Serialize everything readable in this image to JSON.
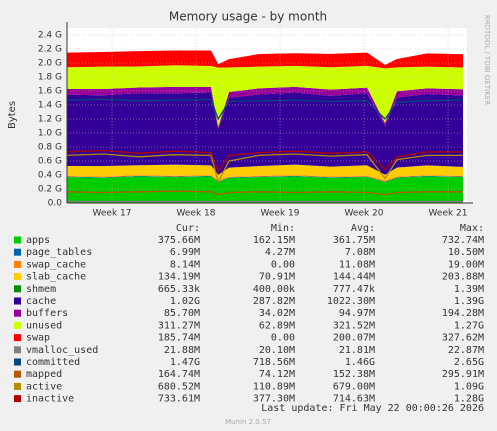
{
  "chart_data": {
    "type": "stacked-area",
    "title": "Memory usage - by month",
    "ylabel": "Bytes",
    "side_text": "RRDTOOL / TOBI OETIKER",
    "footer": "Last update: Fri May 22 00:00:26 2026",
    "version": "Munin 2.0.57",
    "columns": [
      "Cur:",
      "Min:",
      "Avg:",
      "Max:"
    ],
    "x": [
      0,
      3,
      6,
      9,
      12,
      12.6,
      13.5,
      16,
      19,
      22,
      25,
      26.5,
      27.5,
      30,
      33
    ],
    "xlim": [
      0,
      33.33
    ],
    "xticks": [
      {
        "value": 3.75,
        "label": "Week 17"
      },
      {
        "value": 10.75,
        "label": "Week 18"
      },
      {
        "value": 17.75,
        "label": "Week 19"
      },
      {
        "value": 24.75,
        "label": "Week 20"
      },
      {
        "value": 31.75,
        "label": "Week 21"
      }
    ],
    "ylim": [
      0,
      2.5
    ],
    "yticks": [
      {
        "value": 0,
        "label": "0.0"
      },
      {
        "value": 0.2,
        "label": "0.2 G"
      },
      {
        "value": 0.4,
        "label": "0.4 G"
      },
      {
        "value": 0.6,
        "label": "0.6 G"
      },
      {
        "value": 0.8,
        "label": "0.8 G"
      },
      {
        "value": 1.0,
        "label": "1.0 G"
      },
      {
        "value": 1.2,
        "label": "1.2 G"
      },
      {
        "value": 1.4,
        "label": "1.4 G"
      },
      {
        "value": 1.6,
        "label": "1.6 G"
      },
      {
        "value": 1.8,
        "label": "1.8 G"
      },
      {
        "value": 2.0,
        "label": "2.0 G"
      },
      {
        "value": 2.2,
        "label": "2.2 G"
      },
      {
        "value": 2.4,
        "label": "2.4 G"
      }
    ],
    "grid": true,
    "series": [
      {
        "name": "apps",
        "color": "#00cc00",
        "kind": "area",
        "stats": [
          "375.66M",
          "162.15M",
          "361.75M",
          "732.74M"
        ],
        "values": [
          0.37,
          0.36,
          0.38,
          0.37,
          0.38,
          0.3,
          0.36,
          0.37,
          0.38,
          0.36,
          0.37,
          0.3,
          0.36,
          0.38,
          0.37
        ]
      },
      {
        "name": "page_tables",
        "color": "#0066b3",
        "kind": "area",
        "stats": [
          "6.99M",
          "4.27M",
          "7.08M",
          "10.50M"
        ],
        "values": [
          0.007,
          0.007,
          0.007,
          0.007,
          0.007,
          0.005,
          0.007,
          0.007,
          0.007,
          0.007,
          0.007,
          0.005,
          0.007,
          0.007,
          0.007
        ]
      },
      {
        "name": "swap_cache",
        "color": "#ff8000",
        "kind": "area",
        "stats": [
          "8.14M",
          "0.00",
          "11.08M",
          "19.00M"
        ],
        "values": [
          0.011,
          0.01,
          0.012,
          0.011,
          0.01,
          0.019,
          0.008,
          0.01,
          0.011,
          0.012,
          0.011,
          0.018,
          0.009,
          0.01,
          0.008
        ]
      },
      {
        "name": "slab_cache",
        "color": "#ffcc00",
        "kind": "area",
        "stats": [
          "134.19M",
          "70.91M",
          "144.44M",
          "203.88M"
        ],
        "values": [
          0.14,
          0.15,
          0.14,
          0.16,
          0.14,
          0.08,
          0.13,
          0.14,
          0.15,
          0.14,
          0.15,
          0.08,
          0.13,
          0.14,
          0.13
        ]
      },
      {
        "name": "shmem",
        "color": "#008f00",
        "kind": "area",
        "stats": [
          "665.33k",
          "400.00k",
          "777.47k",
          "1.39M"
        ],
        "values": [
          0.0007,
          0.0007,
          0.0008,
          0.0007,
          0.0008,
          0.0004,
          0.0007,
          0.0007,
          0.0008,
          0.0007,
          0.0008,
          0.0004,
          0.0007,
          0.0007,
          0.0007
        ]
      },
      {
        "name": "cache",
        "color": "#330099",
        "kind": "area",
        "stats": [
          "1.02G",
          "287.82M",
          "1022.30M",
          "1.39G"
        ],
        "values": [
          1.02,
          1.01,
          1.03,
          1.02,
          1.04,
          0.65,
          1.0,
          1.02,
          1.03,
          1.01,
          1.03,
          0.7,
          1.0,
          1.02,
          1.02
        ]
      },
      {
        "name": "buffers",
        "color": "#990099",
        "kind": "area",
        "stats": [
          "85.70M",
          "34.02M",
          "94.97M",
          "194.28M"
        ],
        "values": [
          0.08,
          0.09,
          0.08,
          0.09,
          0.08,
          0.03,
          0.08,
          0.09,
          0.08,
          0.09,
          0.08,
          0.04,
          0.09,
          0.08,
          0.09
        ]
      },
      {
        "name": "unused",
        "color": "#ccff00",
        "kind": "area",
        "stats": [
          "311.27M",
          "62.89M",
          "321.52M",
          "1.27G"
        ],
        "values": [
          0.31,
          0.32,
          0.3,
          0.31,
          0.3,
          0.85,
          0.35,
          0.31,
          0.3,
          0.32,
          0.31,
          0.78,
          0.34,
          0.31,
          0.31
        ]
      },
      {
        "name": "swap",
        "color": "#ff0000",
        "kind": "area",
        "stats": [
          "185.74M",
          "0.00",
          "200.07M",
          "327.62M"
        ],
        "values": [
          0.21,
          0.21,
          0.22,
          0.21,
          0.22,
          0.05,
          0.12,
          0.18,
          0.18,
          0.19,
          0.19,
          0.05,
          0.12,
          0.19,
          0.19
        ]
      },
      {
        "name": "vmalloc_used",
        "color": "#808080",
        "kind": "line",
        "stats": [
          "21.88M",
          "20.10M",
          "21.81M",
          "22.87M"
        ],
        "values": [
          0.022,
          0.022,
          0.022,
          0.022,
          0.022,
          0.021,
          0.022,
          0.022,
          0.022,
          0.022,
          0.022,
          0.021,
          0.022,
          0.022,
          0.022
        ]
      },
      {
        "name": "committed",
        "color": "#00487d",
        "kind": "line",
        "stats": [
          "1.47G",
          "718.56M",
          "1.46G",
          "2.65G"
        ],
        "values": [
          1.47,
          1.48,
          1.46,
          1.47,
          1.48,
          1.2,
          1.45,
          1.46,
          1.47,
          1.45,
          1.46,
          1.2,
          1.44,
          1.46,
          1.47
        ]
      },
      {
        "name": "mapped",
        "color": "#b35a00",
        "kind": "line",
        "stats": [
          "164.74M",
          "74.12M",
          "152.38M",
          "295.91M"
        ],
        "values": [
          0.16,
          0.15,
          0.16,
          0.17,
          0.16,
          0.12,
          0.15,
          0.16,
          0.15,
          0.16,
          0.15,
          0.12,
          0.15,
          0.16,
          0.16
        ]
      },
      {
        "name": "active",
        "color": "#b38f00",
        "kind": "line",
        "stats": [
          "680.52M",
          "110.89M",
          "679.00M",
          "1.09G"
        ],
        "values": [
          0.68,
          0.7,
          0.66,
          0.69,
          0.68,
          0.3,
          0.6,
          0.68,
          0.7,
          0.67,
          0.69,
          0.35,
          0.62,
          0.68,
          0.68
        ]
      },
      {
        "name": "inactive",
        "color": "#b30000",
        "kind": "line",
        "stats": [
          "733.61M",
          "377.30M",
          "714.63M",
          "1.28G"
        ],
        "values": [
          0.73,
          0.75,
          0.71,
          0.74,
          0.72,
          0.45,
          0.68,
          0.72,
          0.74,
          0.71,
          0.73,
          0.48,
          0.66,
          0.73,
          0.73
        ]
      }
    ]
  }
}
